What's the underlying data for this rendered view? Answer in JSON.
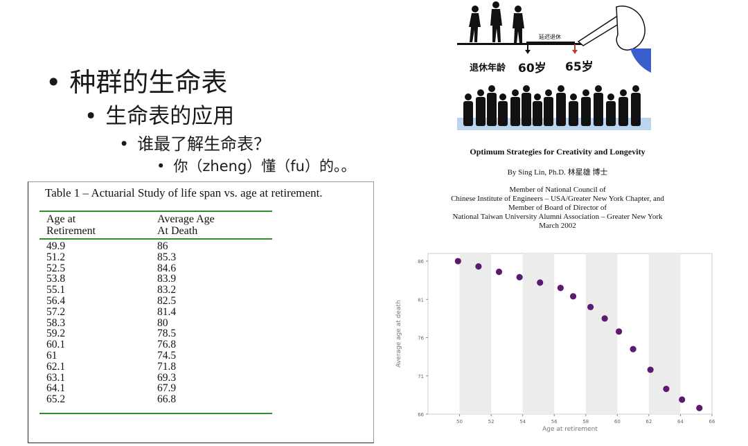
{
  "bullets": [
    {
      "level": 1,
      "text": "种群的生命表"
    },
    {
      "level": 2,
      "text": "生命表的应用"
    },
    {
      "level": 3,
      "text": "谁最了解生命表？"
    },
    {
      "level": 4,
      "text": "你（zheng）懂（fu）的。。"
    }
  ],
  "illustration": {
    "arrow_label": "延迟退休",
    "left_label": "退休年龄",
    "age_from": "60岁",
    "age_to": "65岁",
    "icon": "retirement-illustration"
  },
  "paper": {
    "title": "Optimum Strategies for Creativity and Longevity",
    "author": "By Sing Lin, Ph.D. 林星雄 博士",
    "affiliation_lines": [
      "Member of National Council of",
      "Chinese Institute of Engineers – USA/Greater New York Chapter, and",
      "Member of Board of Director of",
      "National Taiwan University Alumni Association – Greater New York",
      "March 2002"
    ]
  },
  "table": {
    "caption": "Table 1 – Actuarial Study of life span vs. age at retirement.",
    "headers": [
      [
        "Age at",
        "Retirement"
      ],
      [
        "Average Age",
        "At Death"
      ]
    ],
    "rows": [
      [
        "49.9",
        "86"
      ],
      [
        "51.2",
        "85.3"
      ],
      [
        "52.5",
        "84.6"
      ],
      [
        "53.8",
        "83.9"
      ],
      [
        "55.1",
        "83.2"
      ],
      [
        "56.4",
        "82.5"
      ],
      [
        "57.2",
        "81.4"
      ],
      [
        "58.3",
        "80"
      ],
      [
        "59.2",
        "78.5"
      ],
      [
        "60.1",
        "76.8"
      ],
      [
        "61",
        "74.5"
      ],
      [
        "62.1",
        "71.8"
      ],
      [
        "63.1",
        "69.3"
      ],
      [
        "64.1",
        "67.9"
      ],
      [
        "65.2",
        "66.8"
      ]
    ],
    "rule_color": "#2e8b2e"
  },
  "chart_data": {
    "type": "scatter",
    "title": "",
    "xlabel": "Age at retirement",
    "ylabel": "Average age at death",
    "xlim": [
      48,
      66
    ],
    "ylim": [
      66,
      87
    ],
    "xticks": [
      50,
      52,
      54,
      56,
      58,
      60,
      62,
      64,
      66
    ],
    "yticks": [
      66,
      71,
      76,
      81,
      86
    ],
    "grid": "alternating vertical bands",
    "point_color": "#5a1a6e",
    "x": [
      49.9,
      51.2,
      52.5,
      53.8,
      55.1,
      56.4,
      57.2,
      58.3,
      59.2,
      60.1,
      61,
      62.1,
      63.1,
      64.1,
      65.2
    ],
    "y": [
      86,
      85.3,
      84.6,
      83.9,
      83.2,
      82.5,
      81.4,
      80,
      78.5,
      76.8,
      74.5,
      71.8,
      69.3,
      67.9,
      66.8
    ]
  }
}
